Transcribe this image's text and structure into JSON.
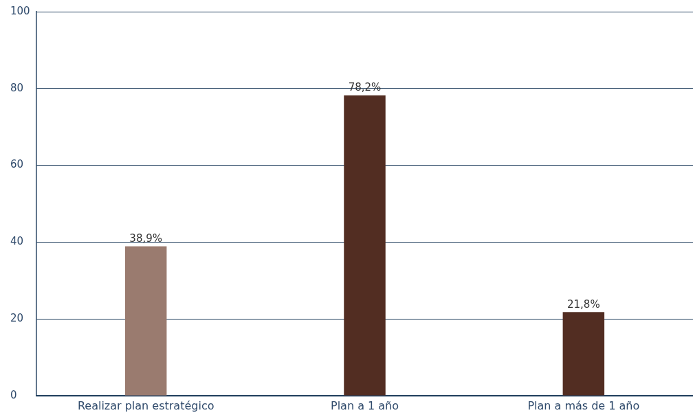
{
  "chart_data": {
    "type": "bar",
    "categories": [
      "Realizar plan estratégico",
      "Plan a 1 año",
      "Plan a más de 1 año"
    ],
    "values": [
      38.9,
      78.2,
      21.8
    ],
    "colors": [
      "#9a7b6f",
      "#522d22",
      "#522d22"
    ],
    "value_labels": [
      "38,9%",
      "78,2%",
      "21,8%"
    ],
    "ylim": [
      0,
      100
    ],
    "yticks": [
      0,
      20,
      40,
      60,
      80,
      100
    ],
    "grid": "y"
  }
}
